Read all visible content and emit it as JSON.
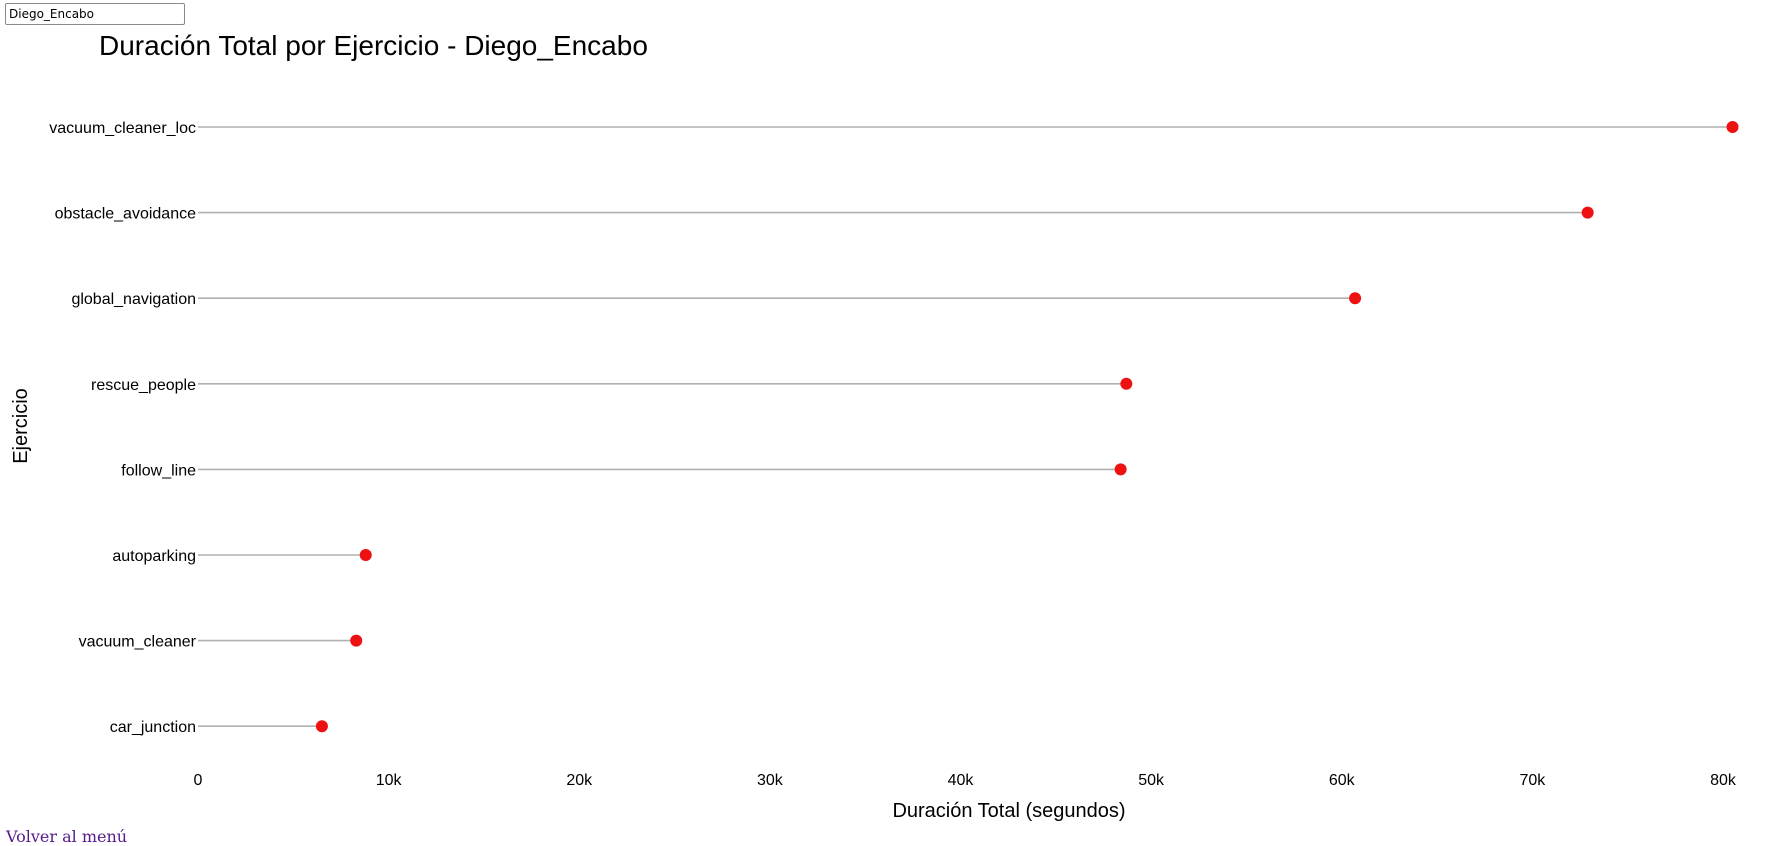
{
  "user_field": {
    "value": "Diego_Encabo"
  },
  "back_link": {
    "label": "Volver al menú"
  },
  "chart_data": {
    "type": "lollipop",
    "title": "Duración Total por Ejercicio - Diego_Encabo",
    "xlabel": "Duración Total (segundos)",
    "ylabel": "Ejercicio",
    "xlim": [
      0,
      80000
    ],
    "xticks": [
      0,
      10000,
      20000,
      30000,
      40000,
      50000,
      60000,
      70000,
      80000
    ],
    "xtick_labels": [
      "0",
      "10k",
      "20k",
      "30k",
      "40k",
      "50k",
      "60k",
      "70k",
      "80k"
    ],
    "categories": [
      "vacuum_cleaner_loc",
      "obstacle_avoidance",
      "global_navigation",
      "rescue_people",
      "follow_line",
      "autoparking",
      "vacuum_cleaner",
      "car_junction"
    ],
    "values": [
      80500,
      72900,
      60700,
      48700,
      48400,
      8800,
      8300,
      6500
    ],
    "grid": false,
    "line_color": "#b0b0b0",
    "marker_color": "#ee1111"
  }
}
